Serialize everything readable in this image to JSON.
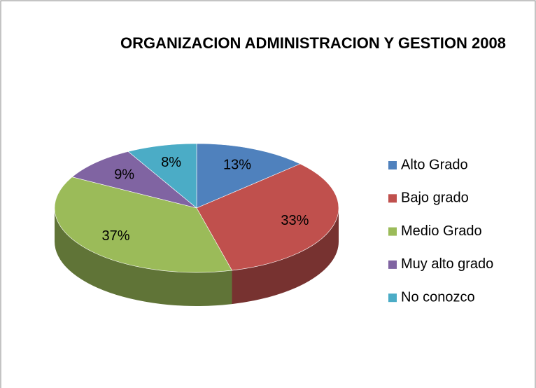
{
  "chart_data": {
    "type": "pie3d",
    "title": "ORGANIZACION ADMINISTRACION Y GESTION 2008",
    "categories": [
      "Alto Grado",
      "Bajo grado",
      "Medio Grado",
      "Muy alto grado",
      "No conozco"
    ],
    "values": [
      13,
      33,
      37,
      9,
      8
    ],
    "value_labels": [
      "13%",
      "33%",
      "37%",
      "9%",
      "8%"
    ],
    "colors": [
      "#4f81bd",
      "#c0504d",
      "#9bbb59",
      "#8064a2",
      "#4bacc6"
    ],
    "legend": "right"
  }
}
